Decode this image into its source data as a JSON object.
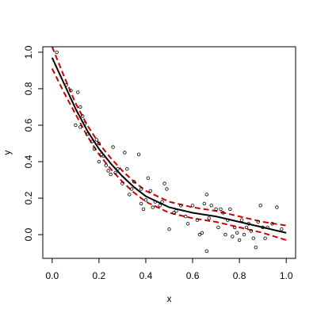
{
  "chart_data": {
    "type": "scatter",
    "title": "",
    "xlabel": "x",
    "ylabel": "y",
    "xlim": [
      -0.04,
      1.04
    ],
    "ylim": [
      -0.13,
      1.03
    ],
    "x_ticks": [
      "0.0",
      "0.2",
      "0.4",
      "0.6",
      "0.8",
      "1.0"
    ],
    "y_ticks": [
      "0.0",
      "0.2",
      "0.4",
      "0.6",
      "0.8",
      "1.0"
    ],
    "grid": false,
    "legend": "none",
    "points": [
      {
        "x": 0.02,
        "y": 1.0
      },
      {
        "x": 0.06,
        "y": 0.82
      },
      {
        "x": 0.08,
        "y": 0.79
      },
      {
        "x": 0.1,
        "y": 0.6
      },
      {
        "x": 0.11,
        "y": 0.78
      },
      {
        "x": 0.12,
        "y": 0.59
      },
      {
        "x": 0.12,
        "y": 0.7
      },
      {
        "x": 0.13,
        "y": 0.65
      },
      {
        "x": 0.14,
        "y": 0.61
      },
      {
        "x": 0.15,
        "y": 0.55
      },
      {
        "x": 0.17,
        "y": 0.51
      },
      {
        "x": 0.18,
        "y": 0.47
      },
      {
        "x": 0.19,
        "y": 0.52
      },
      {
        "x": 0.2,
        "y": 0.4
      },
      {
        "x": 0.2,
        "y": 0.5
      },
      {
        "x": 0.21,
        "y": 0.44
      },
      {
        "x": 0.22,
        "y": 0.43
      },
      {
        "x": 0.23,
        "y": 0.38
      },
      {
        "x": 0.24,
        "y": 0.35
      },
      {
        "x": 0.25,
        "y": 0.33
      },
      {
        "x": 0.26,
        "y": 0.48
      },
      {
        "x": 0.27,
        "y": 0.34
      },
      {
        "x": 0.28,
        "y": 0.36
      },
      {
        "x": 0.3,
        "y": 0.28
      },
      {
        "x": 0.31,
        "y": 0.45
      },
      {
        "x": 0.32,
        "y": 0.36
      },
      {
        "x": 0.33,
        "y": 0.22
      },
      {
        "x": 0.34,
        "y": 0.25
      },
      {
        "x": 0.35,
        "y": 0.29
      },
      {
        "x": 0.37,
        "y": 0.44
      },
      {
        "x": 0.38,
        "y": 0.25
      },
      {
        "x": 0.38,
        "y": 0.17
      },
      {
        "x": 0.39,
        "y": 0.14
      },
      {
        "x": 0.4,
        "y": 0.19
      },
      {
        "x": 0.41,
        "y": 0.31
      },
      {
        "x": 0.42,
        "y": 0.24
      },
      {
        "x": 0.43,
        "y": 0.15
      },
      {
        "x": 0.44,
        "y": 0.18
      },
      {
        "x": 0.46,
        "y": 0.16
      },
      {
        "x": 0.47,
        "y": 0.18
      },
      {
        "x": 0.48,
        "y": 0.28
      },
      {
        "x": 0.49,
        "y": 0.25
      },
      {
        "x": 0.5,
        "y": 0.03
      },
      {
        "x": 0.52,
        "y": 0.12
      },
      {
        "x": 0.53,
        "y": 0.13
      },
      {
        "x": 0.55,
        "y": 0.16
      },
      {
        "x": 0.57,
        "y": 0.1
      },
      {
        "x": 0.58,
        "y": 0.06
      },
      {
        "x": 0.6,
        "y": 0.16
      },
      {
        "x": 0.62,
        "y": 0.08
      },
      {
        "x": 0.63,
        "y": 0.0
      },
      {
        "x": 0.64,
        "y": 0.01
      },
      {
        "x": 0.65,
        "y": 0.17
      },
      {
        "x": 0.66,
        "y": -0.09
      },
      {
        "x": 0.66,
        "y": 0.22
      },
      {
        "x": 0.67,
        "y": 0.09
      },
      {
        "x": 0.68,
        "y": 0.16
      },
      {
        "x": 0.7,
        "y": 0.14
      },
      {
        "x": 0.71,
        "y": 0.04
      },
      {
        "x": 0.72,
        "y": 0.14
      },
      {
        "x": 0.73,
        "y": 0.12
      },
      {
        "x": 0.74,
        "y": 0.0
      },
      {
        "x": 0.75,
        "y": 0.08
      },
      {
        "x": 0.76,
        "y": 0.14
      },
      {
        "x": 0.77,
        "y": -0.01
      },
      {
        "x": 0.78,
        "y": 0.04
      },
      {
        "x": 0.79,
        "y": 0.01
      },
      {
        "x": 0.8,
        "y": -0.03
      },
      {
        "x": 0.81,
        "y": 0.08
      },
      {
        "x": 0.82,
        "y": 0.0
      },
      {
        "x": 0.83,
        "y": 0.04
      },
      {
        "x": 0.84,
        "y": 0.06
      },
      {
        "x": 0.85,
        "y": 0.02
      },
      {
        "x": 0.86,
        "y": -0.02
      },
      {
        "x": 0.87,
        "y": -0.07
      },
      {
        "x": 0.88,
        "y": 0.07
      },
      {
        "x": 0.89,
        "y": 0.16
      },
      {
        "x": 0.9,
        "y": 0.04
      },
      {
        "x": 0.91,
        "y": -0.02
      },
      {
        "x": 0.92,
        "y": 0.04
      },
      {
        "x": 0.94,
        "y": 0.06
      },
      {
        "x": 0.96,
        "y": 0.15
      },
      {
        "x": 0.98,
        "y": 0.03
      }
    ],
    "series": [
      {
        "style": "solid",
        "color": "#000000",
        "x": [
          0.0,
          0.05,
          0.1,
          0.15,
          0.2,
          0.25,
          0.3,
          0.35,
          0.4,
          0.5,
          0.6,
          0.7,
          0.8,
          0.9,
          1.0
        ],
        "y": [
          0.97,
          0.83,
          0.69,
          0.57,
          0.47,
          0.39,
          0.32,
          0.26,
          0.21,
          0.15,
          0.12,
          0.1,
          0.07,
          0.04,
          0.01
        ]
      },
      {
        "style": "dashed",
        "color": "#cc0000",
        "x": [
          0.0,
          0.05,
          0.1,
          0.15,
          0.2,
          0.25,
          0.3,
          0.35,
          0.4,
          0.5,
          0.6,
          0.7,
          0.8,
          0.9,
          1.0
        ],
        "y": [
          1.03,
          0.87,
          0.72,
          0.6,
          0.5,
          0.42,
          0.35,
          0.29,
          0.24,
          0.18,
          0.15,
          0.13,
          0.1,
          0.07,
          0.05
        ]
      },
      {
        "style": "dashed",
        "color": "#cc0000",
        "x": [
          0.0,
          0.05,
          0.1,
          0.15,
          0.2,
          0.25,
          0.3,
          0.35,
          0.4,
          0.5,
          0.6,
          0.7,
          0.8,
          0.9,
          1.0
        ],
        "y": [
          0.91,
          0.78,
          0.66,
          0.54,
          0.44,
          0.36,
          0.29,
          0.23,
          0.18,
          0.12,
          0.09,
          0.07,
          0.04,
          0.01,
          -0.03
        ]
      }
    ]
  }
}
